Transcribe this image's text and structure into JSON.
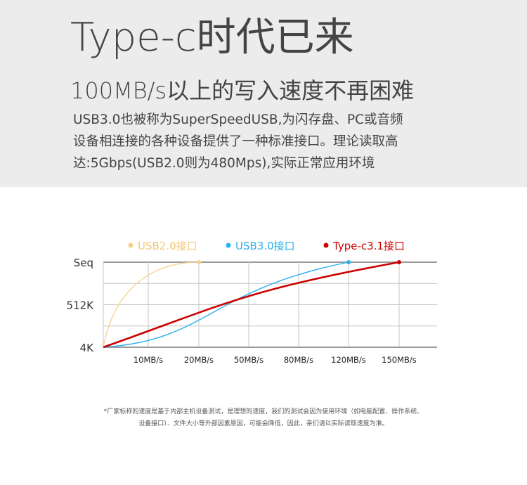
{
  "header": {
    "title": "Type-c时代已来",
    "subtitle": "100MB/s以上的写入速度不再困难",
    "desc_lines": [
      "USB3.0也被称为SuperSpeedUSB,为闪存盘、PC或音频",
      "设备相连接的各种设备提供了一种标准接口。理论读取高",
      "达:5Gbps(USB2.0则为480Mps),实际正常应用环境"
    ]
  },
  "chart_data": {
    "type": "line",
    "x_categories": [
      "",
      "10MB/s",
      "20MB/s",
      "50MB/s",
      "80MB/s",
      "120MB/s",
      "150MB/s"
    ],
    "y_categories": [
      "4K",
      "",
      "512K",
      "",
      "Seq"
    ],
    "grid": true,
    "legend_position": "top",
    "series": [
      {
        "name": "USB2.0接口",
        "color": "#f5d28c",
        "end": [
          2,
          4
        ]
      },
      {
        "name": "USB3.0接口",
        "color": "#2ab0ee",
        "end": [
          5,
          4
        ]
      },
      {
        "name": "Type-c3.1接口",
        "color": "#cc0000",
        "end": [
          6,
          4
        ]
      }
    ],
    "legend_text_colors": [
      "#f0c878",
      "#2ab0ee",
      "#cc0000"
    ]
  },
  "footnote": {
    "lines": [
      "*厂家标称的速度是基于内部主机设备测试，是理想的速度，我们的测试会因为使用环境（如电脑配置、操作系统、",
      "设备接口）、文件大小等外部因素原因，可能会降低，因此，亲们请以实际读取速度为准。"
    ]
  }
}
